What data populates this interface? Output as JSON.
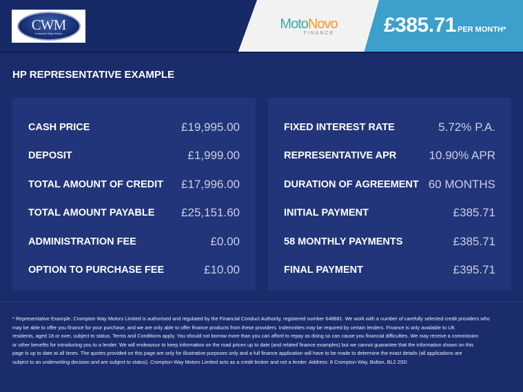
{
  "header": {
    "dealer_logo_text": "CWM",
    "dealer_logo_subtext": "Crompton Way Motors",
    "finance_logo_part1": "Moto",
    "finance_logo_part2": "Novo",
    "finance_logo_sub": "FINANCE",
    "monthly_price": "£385.71",
    "per_month": "PER MONTH*",
    "colors": {
      "navy": "#172967",
      "accent_blue": "#3c9fcc",
      "moto": "#3aa9a8",
      "novo": "#f39a1e"
    }
  },
  "title": "HP REPRESENTATIVE EXAMPLE",
  "left_panel": [
    {
      "label": "CASH PRICE",
      "value": "£19,995.00"
    },
    {
      "label": "DEPOSIT",
      "value": "£1,999.00"
    },
    {
      "label": "TOTAL AMOUNT OF CREDIT",
      "value": "£17,996.00"
    },
    {
      "label": "TOTAL AMOUNT PAYABLE",
      "value": "£25,151.60"
    },
    {
      "label": "ADMINISTRATION FEE",
      "value": "£0.00"
    },
    {
      "label": "OPTION TO PURCHASE FEE",
      "value": "£10.00"
    }
  ],
  "right_panel": [
    {
      "label": "FIXED INTEREST RATE",
      "value": "5.72% P.A."
    },
    {
      "label": "REPRESENTATIVE APR",
      "value": "10.90% APR"
    },
    {
      "label": "DURATION OF AGREEMENT",
      "value": "60 MONTHS"
    },
    {
      "label": "INITIAL PAYMENT",
      "value": "£385.71"
    },
    {
      "label": "58 MONTHLY PAYMENTS",
      "value": "£385.71"
    },
    {
      "label": "FINAL PAYMENT",
      "value": "£395.71"
    }
  ],
  "disclaimer": [
    "* Representative Example. Crompton Way Motors Limited is authorised and regulated by the Financial Conduct Authority, registered number 648881. We work with a number of carefully selected credit providers who",
    "may be able to offer you finance for your purchase, and we are only able to offer finance products from these providers. Indemnities may be required by certain lenders. Finance is only available to UK",
    "residents, aged 18 or over, subject to status. Terms and Conditions apply. You should not borrow more than you can afford to repay as doing so can cause you financial difficulties. We may receive a commission",
    "or other benefits for introducing you to a lender. We will endeavour to keep information on the road prices up to date (and related finance examples) but we cannot guarantee that the information shown on this",
    "page is up to date at all times. The quotes provided on this page are only for illustrative purposes only and a full finance application will have to be made to determine the exact details (all applications are",
    "subject to an underwriting decision and are subject to status). Crompton Way Motors Limited acts as a credit broker and not a lender. Address: 8 Crompton Way, Bolton, BL2 2SD"
  ]
}
